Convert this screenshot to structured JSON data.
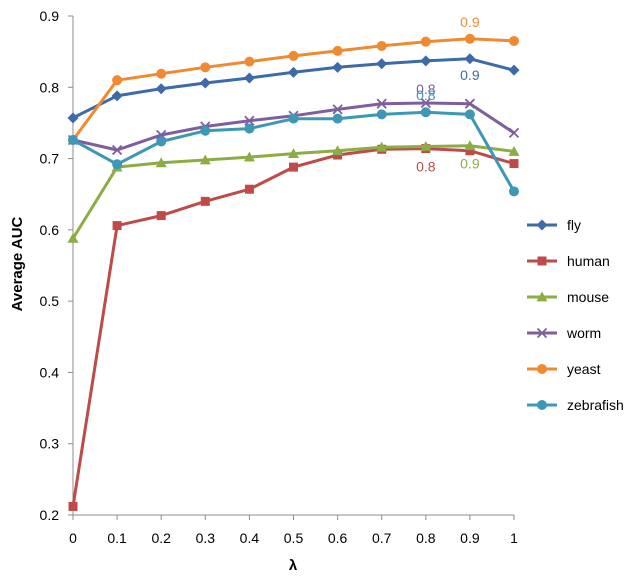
{
  "chart_data": {
    "type": "line",
    "xlabel": "λ",
    "ylabel": "Average AUC",
    "x": [
      0,
      0.1,
      0.2,
      0.3,
      0.4,
      0.5,
      0.6,
      0.7,
      0.8,
      0.9,
      1
    ],
    "x_tick_labels": [
      "0",
      "0.1",
      "0.2",
      "0.3",
      "0.4",
      "0.5",
      "0.6",
      "0.7",
      "0.8",
      "0.9",
      "1"
    ],
    "ylim": [
      0.2,
      0.9
    ],
    "y_tick_labels": [
      "0.2",
      "0.3",
      "0.4",
      "0.5",
      "0.6",
      "0.7",
      "0.8",
      "0.9"
    ],
    "grid": false,
    "legend_position": "right",
    "series": [
      {
        "name": "fly",
        "color": "#3D6AA8",
        "marker": "diamond",
        "values": [
          0.757,
          0.788,
          0.798,
          0.806,
          0.813,
          0.821,
          0.828,
          0.833,
          0.837,
          0.84,
          0.824
        ]
      },
      {
        "name": "human",
        "color": "#BE4B48",
        "marker": "square",
        "values": [
          0.212,
          0.606,
          0.62,
          0.64,
          0.657,
          0.688,
          0.705,
          0.713,
          0.714,
          0.711,
          0.693
        ]
      },
      {
        "name": "mouse",
        "color": "#8CAC44",
        "marker": "triangle",
        "values": [
          0.588,
          0.688,
          0.694,
          0.698,
          0.702,
          0.707,
          0.711,
          0.716,
          0.717,
          0.718,
          0.71
        ]
      },
      {
        "name": "worm",
        "color": "#7E5E9E",
        "marker": "x",
        "values": [
          0.726,
          0.712,
          0.733,
          0.745,
          0.753,
          0.76,
          0.769,
          0.777,
          0.778,
          0.777,
          0.736
        ]
      },
      {
        "name": "yeast",
        "color": "#F08A31",
        "marker": "circle",
        "values": [
          0.726,
          0.81,
          0.819,
          0.828,
          0.836,
          0.844,
          0.851,
          0.858,
          0.864,
          0.868,
          0.865
        ]
      },
      {
        "name": "zebrafish",
        "color": "#3D98B5",
        "marker": "circle",
        "values": [
          0.726,
          0.692,
          0.724,
          0.739,
          0.742,
          0.756,
          0.756,
          0.762,
          0.765,
          0.762,
          0.654
        ]
      }
    ],
    "annotations": [
      {
        "series": "yeast",
        "text": "0.9",
        "x": 0.9,
        "y": 0.868
      },
      {
        "series": "fly",
        "text": "0.9",
        "x": 0.9,
        "y": 0.84
      },
      {
        "series": "worm",
        "text": "0.8",
        "x": 0.8,
        "y": 0.778
      },
      {
        "series": "zebrafish",
        "text": "0.8",
        "x": 0.8,
        "y": 0.765
      },
      {
        "series": "human",
        "text": "0.8",
        "x": 0.8,
        "y": 0.714
      },
      {
        "series": "mouse",
        "text": "0.9",
        "x": 0.9,
        "y": 0.718
      }
    ]
  }
}
